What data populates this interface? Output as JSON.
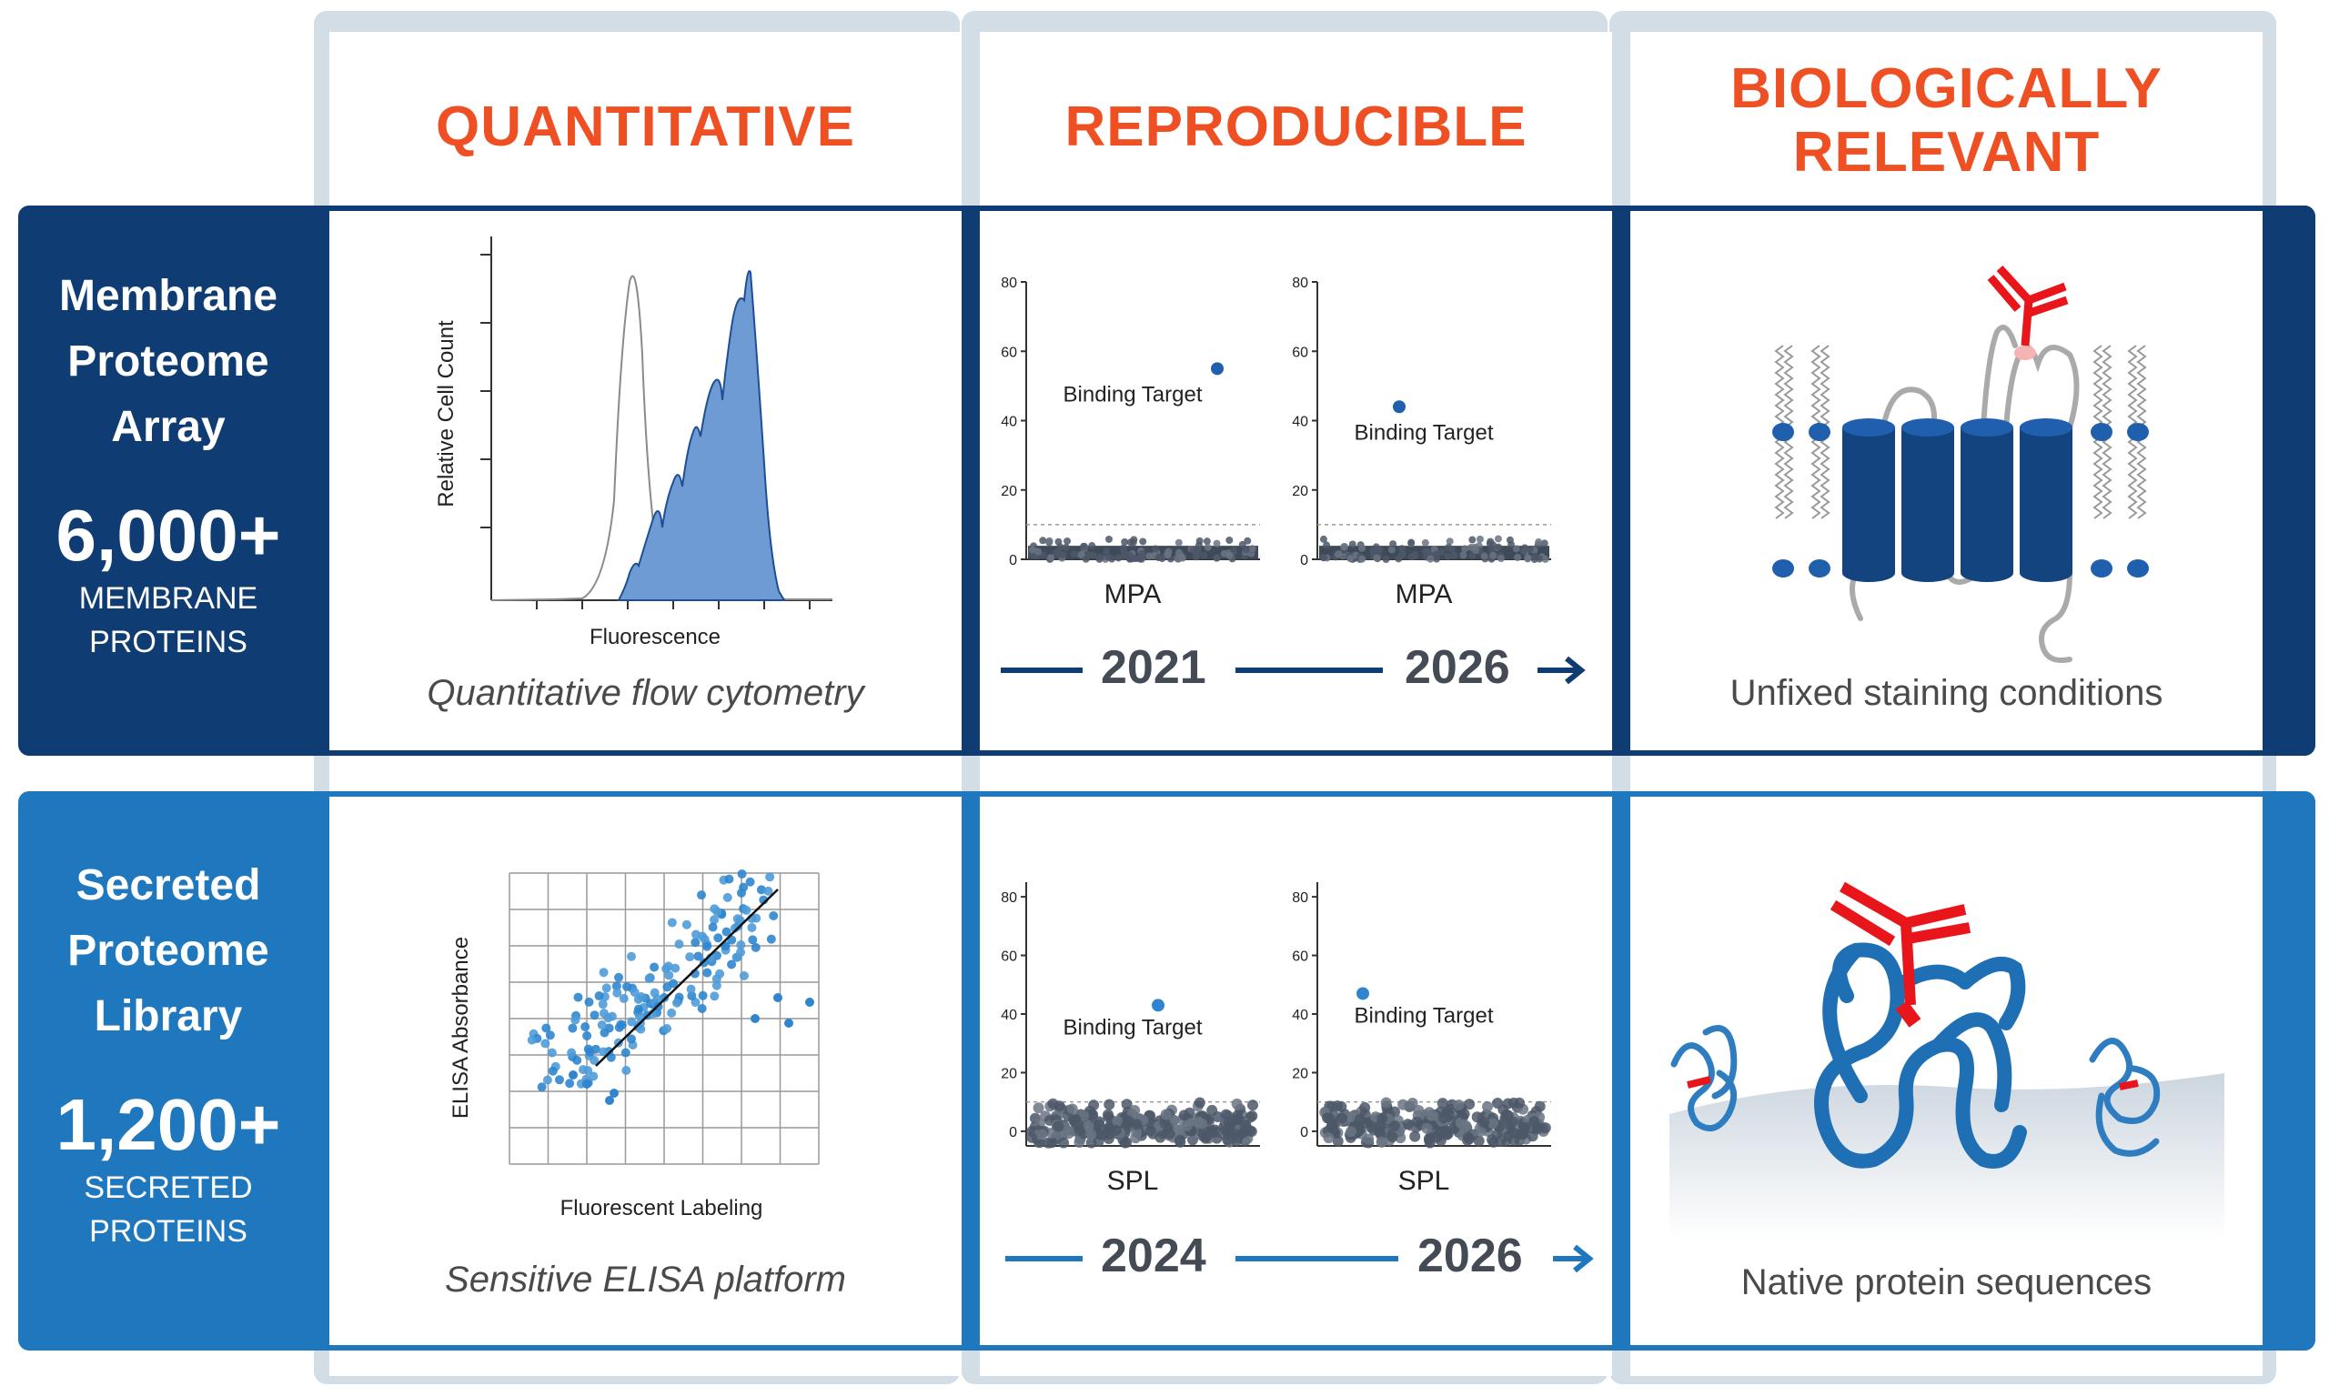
{
  "columns": {
    "quantitative": "QUANTITATIVE",
    "reproducible": "REPRODUCIBLE",
    "biological_line1": "BIOLOGICALLY",
    "biological_line2": "RELEVANT"
  },
  "colors": {
    "accent_orange": "#ef5023",
    "mpa_blue": "#0f3d73",
    "spl_blue": "#1f78be",
    "column_bg": "#d3dde6",
    "antibody_red": "#e8151b"
  },
  "mpa": {
    "name_line1": "Membrane",
    "name_line2": "Proteome",
    "name_line3": "Array",
    "count": "6,000+",
    "sub_line1": "MEMBRANE",
    "sub_line2": "PROTEINS",
    "flow_ylabel": "Relative Cell Count",
    "flow_xlabel": "Fluorescence",
    "flow_caption": "Quantitative flow cytometry",
    "year_start": "2021",
    "year_end": "2026",
    "bio_caption": "Unfixed staining conditions"
  },
  "spl": {
    "name_line1": "Secreted",
    "name_line2": "Proteome",
    "name_line3": "Library",
    "count": "1,200+",
    "sub_line1": "SECRETED",
    "sub_line2": "PROTEINS",
    "elisa_ylabel": "ELISA Absorbance",
    "elisa_xlabel": "Fluorescent Labeling",
    "elisa_caption": "Sensitive ELISA platform",
    "year_start": "2024",
    "year_end": "2026",
    "bio_caption": "Native protein sequences"
  },
  "chart_data": [
    {
      "type": "scatter",
      "label": "MPA 2021",
      "xlabel": "MPA",
      "ylabel": "",
      "ylim": [
        0,
        80
      ],
      "yticks": [
        0,
        20,
        40,
        60,
        80
      ],
      "threshold": 10,
      "highlight": {
        "label": "Binding Target",
        "y": 55
      },
      "background_band": [
        0,
        6
      ]
    },
    {
      "type": "scatter",
      "label": "MPA 2026",
      "xlabel": "MPA",
      "ylabel": "",
      "ylim": [
        0,
        80
      ],
      "yticks": [
        0,
        20,
        40,
        60,
        80
      ],
      "threshold": 10,
      "highlight": {
        "label": "Binding Target",
        "y": 44
      },
      "background_band": [
        0,
        6
      ]
    },
    {
      "type": "scatter",
      "label": "SPL 2024",
      "xlabel": "SPL",
      "ylabel": "",
      "ylim": [
        -5,
        85
      ],
      "yticks": [
        0,
        20,
        40,
        60,
        80
      ],
      "threshold": 10,
      "highlight": {
        "label": "Binding Target",
        "y": 43
      },
      "background_band": [
        -4,
        10
      ]
    },
    {
      "type": "scatter",
      "label": "SPL 2026",
      "xlabel": "SPL",
      "ylabel": "",
      "ylim": [
        -5,
        85
      ],
      "yticks": [
        0,
        20,
        40,
        60,
        80
      ],
      "threshold": 10,
      "highlight": {
        "label": "Binding Target",
        "y": 47
      },
      "background_band": [
        -4,
        10
      ]
    }
  ]
}
